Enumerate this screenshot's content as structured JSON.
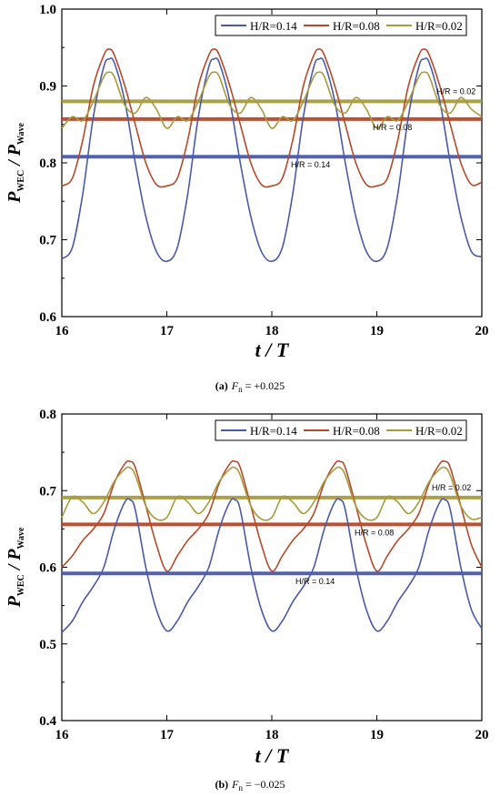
{
  "colors": {
    "H014": "#4a5aa8",
    "H008": "#b54a2b",
    "H002": "#a89b3e"
  },
  "chart_data": [
    {
      "type": "line",
      "caption_label": "(a)",
      "caption_text": "F",
      "caption_sub": "n",
      "caption_value": " = +0.025",
      "xlabel_main": "t / T",
      "ylabel_main": "P",
      "ylabel_sub1": "WEC",
      "ylabel_sep": " / P",
      "ylabel_sub2": "Wave",
      "xlim": [
        16,
        20
      ],
      "ylim": [
        0.6,
        1.0
      ],
      "x_ticks": [
        "16",
        "17",
        "18",
        "19",
        "20"
      ],
      "y_ticks": [
        "0.6",
        "0.7",
        "0.8",
        "0.9",
        "1.0"
      ],
      "legend": [
        "H/R=0.14",
        "H/R=0.08",
        "H/R=0.02"
      ],
      "legend_position": "top-right",
      "series": [
        {
          "name": "H/R=0.14",
          "color_key": "H014",
          "mean": 0.808,
          "mean_label": "H/R = 0.14",
          "x": [
            16.0,
            16.1,
            16.2,
            16.3,
            16.4,
            16.45,
            16.5,
            16.6,
            16.7,
            16.8,
            16.9,
            17.0,
            17.1,
            17.2,
            17.3,
            17.4,
            17.45,
            17.5,
            17.6,
            17.7,
            17.8,
            17.9,
            18.0,
            18.1,
            18.2,
            18.3,
            18.4,
            18.45,
            18.5,
            18.6,
            18.7,
            18.8,
            18.9,
            19.0,
            19.1,
            19.2,
            19.3,
            19.4,
            19.45,
            19.5,
            19.6,
            19.7,
            19.8,
            19.9,
            20.0
          ],
          "y": [
            0.675,
            0.69,
            0.76,
            0.86,
            0.925,
            0.935,
            0.93,
            0.88,
            0.8,
            0.73,
            0.685,
            0.672,
            0.69,
            0.76,
            0.86,
            0.925,
            0.935,
            0.93,
            0.88,
            0.8,
            0.73,
            0.685,
            0.672,
            0.69,
            0.76,
            0.86,
            0.925,
            0.935,
            0.93,
            0.88,
            0.8,
            0.73,
            0.685,
            0.672,
            0.69,
            0.76,
            0.86,
            0.925,
            0.935,
            0.93,
            0.88,
            0.8,
            0.73,
            0.685,
            0.678
          ]
        },
        {
          "name": "H/R=0.08",
          "color_key": "H008",
          "mean": 0.857,
          "mean_label": "H/R = 0.08",
          "x": [
            16.0,
            16.1,
            16.2,
            16.3,
            16.4,
            16.45,
            16.5,
            16.6,
            16.7,
            16.8,
            16.9,
            17.0,
            17.1,
            17.2,
            17.3,
            17.4,
            17.45,
            17.5,
            17.6,
            17.7,
            17.8,
            17.9,
            18.0,
            18.1,
            18.2,
            18.3,
            18.4,
            18.45,
            18.5,
            18.6,
            18.7,
            18.8,
            18.9,
            19.0,
            19.1,
            19.2,
            19.3,
            19.4,
            19.45,
            19.5,
            19.6,
            19.7,
            19.8,
            19.9,
            20.0
          ],
          "y": [
            0.77,
            0.78,
            0.83,
            0.9,
            0.94,
            0.948,
            0.94,
            0.9,
            0.85,
            0.8,
            0.772,
            0.77,
            0.78,
            0.83,
            0.9,
            0.94,
            0.948,
            0.94,
            0.9,
            0.85,
            0.8,
            0.772,
            0.77,
            0.78,
            0.83,
            0.9,
            0.94,
            0.948,
            0.94,
            0.9,
            0.85,
            0.8,
            0.772,
            0.77,
            0.78,
            0.83,
            0.9,
            0.94,
            0.948,
            0.94,
            0.9,
            0.85,
            0.8,
            0.772,
            0.775
          ]
        },
        {
          "name": "H/R=0.02",
          "color_key": "H002",
          "mean": 0.88,
          "mean_label": "H/R = 0.02",
          "x": [
            16.0,
            16.1,
            16.2,
            16.3,
            16.4,
            16.45,
            16.5,
            16.6,
            16.7,
            16.8,
            16.9,
            17.0,
            17.1,
            17.2,
            17.3,
            17.4,
            17.45,
            17.5,
            17.6,
            17.7,
            17.8,
            17.9,
            18.0,
            18.1,
            18.2,
            18.3,
            18.4,
            18.45,
            18.5,
            18.6,
            18.7,
            18.8,
            18.9,
            19.0,
            19.1,
            19.2,
            19.3,
            19.4,
            19.45,
            19.5,
            19.6,
            19.7,
            19.8,
            19.9,
            20.0
          ],
          "y": [
            0.845,
            0.86,
            0.855,
            0.88,
            0.912,
            0.918,
            0.912,
            0.875,
            0.865,
            0.885,
            0.87,
            0.845,
            0.86,
            0.855,
            0.88,
            0.912,
            0.918,
            0.912,
            0.875,
            0.865,
            0.885,
            0.87,
            0.845,
            0.86,
            0.855,
            0.88,
            0.912,
            0.918,
            0.912,
            0.875,
            0.865,
            0.885,
            0.87,
            0.845,
            0.86,
            0.855,
            0.88,
            0.912,
            0.918,
            0.912,
            0.875,
            0.865,
            0.885,
            0.87,
            0.86
          ]
        }
      ]
    },
    {
      "type": "line",
      "caption_label": "(b)",
      "caption_text": "F",
      "caption_sub": "n",
      "caption_value": " = −0.025",
      "xlabel_main": "t / T",
      "ylabel_main": "P",
      "ylabel_sub1": "WEC",
      "ylabel_sep": " / P",
      "ylabel_sub2": "Wave",
      "xlim": [
        16,
        20
      ],
      "ylim": [
        0.4,
        0.8
      ],
      "x_ticks": [
        "16",
        "17",
        "18",
        "19",
        "20"
      ],
      "y_ticks": [
        "0.4",
        "0.5",
        "0.6",
        "0.7",
        "0.8"
      ],
      "legend": [
        "H/R=0.14",
        "H/R=0.08",
        "H/R=0.02"
      ],
      "legend_position": "top-right",
      "series": [
        {
          "name": "H/R=0.14",
          "color_key": "H014",
          "mean": 0.592,
          "mean_label": "H/R = 0.14",
          "x": [
            16.0,
            16.1,
            16.2,
            16.3,
            16.4,
            16.5,
            16.6,
            16.65,
            16.7,
            16.8,
            16.9,
            17.0,
            17.1,
            17.2,
            17.3,
            17.4,
            17.5,
            17.6,
            17.65,
            17.7,
            17.8,
            17.9,
            18.0,
            18.1,
            18.2,
            18.3,
            18.4,
            18.5,
            18.6,
            18.65,
            18.7,
            18.8,
            18.9,
            19.0,
            19.1,
            19.2,
            19.3,
            19.4,
            19.5,
            19.6,
            19.65,
            19.7,
            19.8,
            19.9,
            20.0
          ],
          "y": [
            0.515,
            0.53,
            0.555,
            0.575,
            0.6,
            0.65,
            0.685,
            0.688,
            0.675,
            0.6,
            0.545,
            0.517,
            0.53,
            0.555,
            0.575,
            0.6,
            0.65,
            0.685,
            0.688,
            0.675,
            0.6,
            0.545,
            0.517,
            0.53,
            0.555,
            0.575,
            0.6,
            0.65,
            0.685,
            0.688,
            0.675,
            0.6,
            0.545,
            0.517,
            0.53,
            0.555,
            0.575,
            0.6,
            0.65,
            0.685,
            0.688,
            0.675,
            0.6,
            0.545,
            0.52
          ]
        },
        {
          "name": "H/R=0.08",
          "color_key": "H008",
          "mean": 0.656,
          "mean_label": "H/R = 0.08",
          "x": [
            16.0,
            16.1,
            16.2,
            16.3,
            16.4,
            16.5,
            16.6,
            16.65,
            16.7,
            16.8,
            16.9,
            17.0,
            17.1,
            17.2,
            17.3,
            17.4,
            17.5,
            17.6,
            17.65,
            17.7,
            17.8,
            17.9,
            18.0,
            18.1,
            18.2,
            18.3,
            18.4,
            18.5,
            18.6,
            18.65,
            18.7,
            18.8,
            18.9,
            19.0,
            19.1,
            19.2,
            19.3,
            19.4,
            19.5,
            19.6,
            19.65,
            19.7,
            19.8,
            19.9,
            20.0
          ],
          "y": [
            0.6,
            0.615,
            0.635,
            0.65,
            0.67,
            0.71,
            0.735,
            0.738,
            0.73,
            0.68,
            0.63,
            0.595,
            0.615,
            0.635,
            0.65,
            0.67,
            0.71,
            0.735,
            0.738,
            0.73,
            0.68,
            0.63,
            0.595,
            0.615,
            0.635,
            0.65,
            0.67,
            0.71,
            0.735,
            0.738,
            0.73,
            0.68,
            0.63,
            0.595,
            0.615,
            0.635,
            0.65,
            0.67,
            0.71,
            0.735,
            0.738,
            0.73,
            0.68,
            0.63,
            0.6
          ]
        },
        {
          "name": "H/R=0.02",
          "color_key": "H002",
          "mean": 0.691,
          "mean_label": "H/R = 0.02",
          "x": [
            16.0,
            16.1,
            16.2,
            16.3,
            16.4,
            16.5,
            16.6,
            16.65,
            16.7,
            16.8,
            16.9,
            17.0,
            17.1,
            17.2,
            17.3,
            17.4,
            17.5,
            17.6,
            17.65,
            17.7,
            17.8,
            17.9,
            18.0,
            18.1,
            18.2,
            18.3,
            18.4,
            18.5,
            18.6,
            18.65,
            18.7,
            18.8,
            18.9,
            19.0,
            19.1,
            19.2,
            19.3,
            19.4,
            19.5,
            19.6,
            19.65,
            19.7,
            19.8,
            19.9,
            20.0
          ],
          "y": [
            0.665,
            0.692,
            0.685,
            0.67,
            0.685,
            0.712,
            0.728,
            0.73,
            0.72,
            0.68,
            0.663,
            0.665,
            0.692,
            0.685,
            0.67,
            0.685,
            0.712,
            0.728,
            0.73,
            0.72,
            0.68,
            0.663,
            0.665,
            0.692,
            0.685,
            0.67,
            0.685,
            0.712,
            0.728,
            0.73,
            0.72,
            0.68,
            0.663,
            0.665,
            0.692,
            0.685,
            0.67,
            0.685,
            0.712,
            0.728,
            0.73,
            0.72,
            0.68,
            0.663,
            0.665
          ]
        }
      ]
    }
  ]
}
